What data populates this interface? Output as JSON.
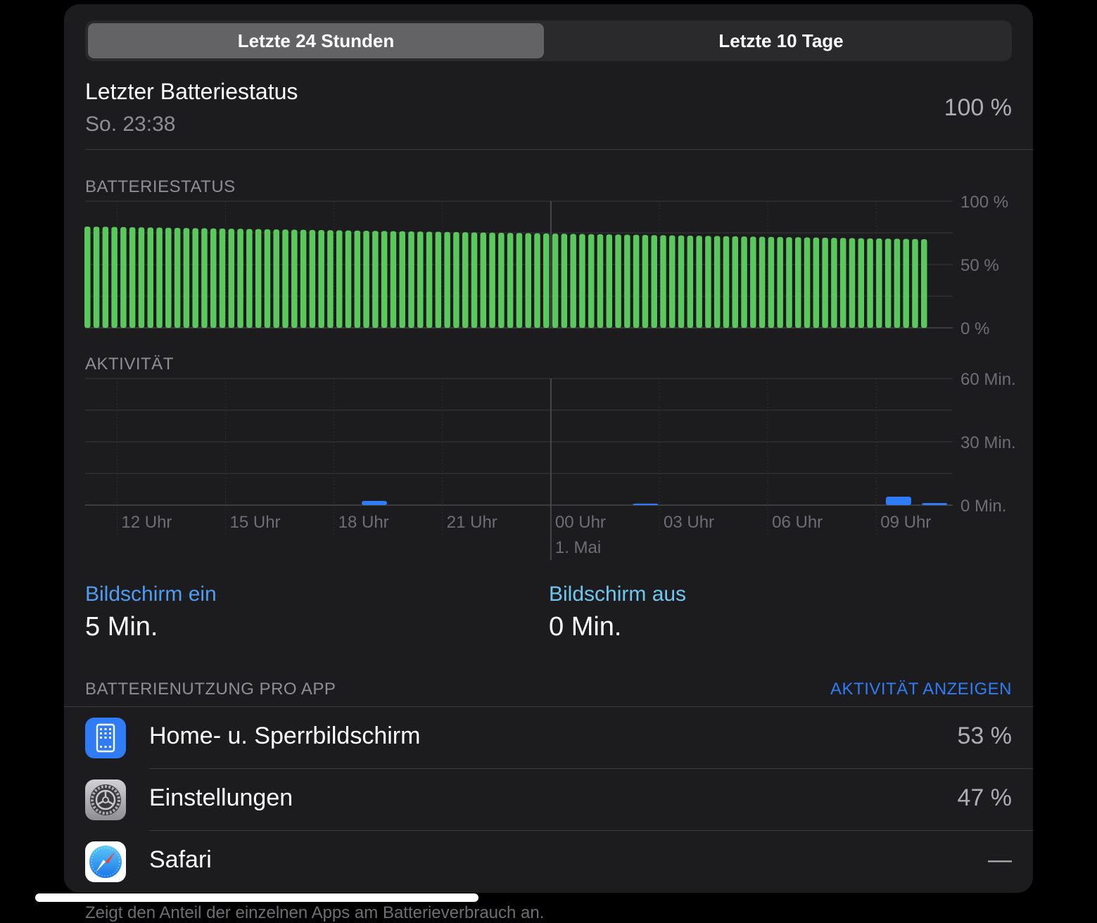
{
  "tabs": [
    {
      "label": "Letzte 24 Stunden",
      "active": true
    },
    {
      "label": "Letzte 10 Tage",
      "active": false
    }
  ],
  "last_status": {
    "title": "Letzter Batteriestatus",
    "time": "So. 23:38",
    "value": "100 %"
  },
  "battery_section": {
    "title": "BATTERIESTATUS"
  },
  "activity_section": {
    "title": "AKTIVITÄT"
  },
  "chart_data": [
    {
      "type": "bar",
      "title": "BATTERIESTATUS",
      "y_ticks": [
        "100 %",
        "50 %",
        "0 %"
      ],
      "ylim": [
        0,
        100
      ],
      "x_range_hours": [
        11,
        35
      ],
      "bar_color": "#5ac85c",
      "bar_count": 94,
      "values_start": 80,
      "values_end": 70,
      "grid": true
    },
    {
      "type": "bar",
      "title": "AKTIVITÄT",
      "y_ticks": [
        "60 Min.",
        "30 Min.",
        "0 Min."
      ],
      "ylim": [
        0,
        60
      ],
      "x_ticks": [
        "12 Uhr",
        "15 Uhr",
        "18 Uhr",
        "21 Uhr",
        "00 Uhr",
        "03 Uhr",
        "06 Uhr",
        "09 Uhr"
      ],
      "date_marker": "1. Mai",
      "bar_color": "#2f7cf6",
      "bars": [
        {
          "x_hour": 19,
          "minutes": 2
        },
        {
          "x_hour": 26.5,
          "minutes": 0.7
        },
        {
          "x_hour": 33.5,
          "minutes": 4
        },
        {
          "x_hour": 34.5,
          "minutes": 1
        }
      ],
      "grid": true
    }
  ],
  "screen_on": {
    "label": "Bildschirm ein",
    "value": "5 Min.",
    "color": "#4f9cf3"
  },
  "screen_off": {
    "label": "Bildschirm aus",
    "value": "0 Min.",
    "color": "#71c6f0"
  },
  "usage": {
    "title": "BATTERIENUTZUNG PRO APP",
    "link": "AKTIVITÄT ANZEIGEN"
  },
  "apps": [
    {
      "name": "Home- u. Sperrbildschirm",
      "pct": "53 %",
      "icon": "home-screen-icon"
    },
    {
      "name": "Einstellungen",
      "pct": "47 %",
      "icon": "settings-gear-icon"
    },
    {
      "name": "Safari",
      "pct": "—",
      "icon": "safari-compass-icon"
    }
  ],
  "footer": "Zeigt den Anteil der einzelnen Apps am Batterieverbrauch an."
}
